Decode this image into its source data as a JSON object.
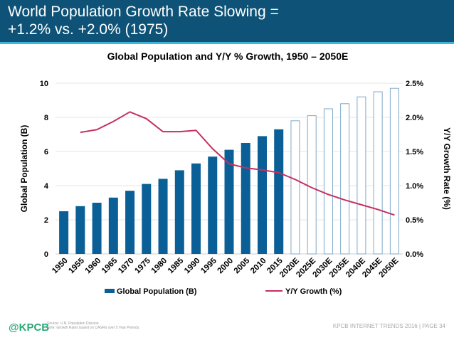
{
  "header": {
    "title": "World Population Growth Rate Slowing =\n+1.2% vs. +2.0% (1975)"
  },
  "chart_data": {
    "type": "bar+line",
    "title": "Global Population and Y/Y % Growth, 1950 – 2050E",
    "ylabel": "Global Population (B)",
    "y2label": "Y/Y Growth Rate (%)",
    "ylim": [
      0,
      10
    ],
    "y2lim": [
      0,
      2.5
    ],
    "yticks": [
      "0",
      "2",
      "4",
      "6",
      "8",
      "10"
    ],
    "y2ticks": [
      "0.0%",
      "0.5%",
      "1.0%",
      "1.5%",
      "2.0%",
      "2.5%"
    ],
    "categories": [
      "1950",
      "1955",
      "1960",
      "1965",
      "1970",
      "1975",
      "1980",
      "1985",
      "1990",
      "1995",
      "2000",
      "2005",
      "2010",
      "2015",
      "2020E",
      "2025E",
      "2030E",
      "2035E",
      "2040E",
      "2045E",
      "2050E"
    ],
    "series": [
      {
        "name": "Global Population (B)",
        "type": "bar",
        "axis": "left",
        "color": "#0a5f97",
        "values": [
          2.5,
          2.8,
          3.0,
          3.3,
          3.7,
          4.1,
          4.4,
          4.9,
          5.3,
          5.7,
          6.1,
          6.5,
          6.9,
          7.3,
          7.8,
          8.1,
          8.5,
          8.8,
          9.2,
          9.5,
          9.7
        ],
        "projected_from": "2020E"
      },
      {
        "name": "Y/Y Growth (%)",
        "type": "line",
        "axis": "right",
        "color": "#c5305f",
        "values": [
          null,
          1.78,
          1.82,
          1.94,
          2.08,
          1.98,
          1.79,
          1.79,
          1.81,
          1.54,
          1.32,
          1.26,
          1.23,
          1.19,
          1.09,
          0.97,
          0.87,
          0.79,
          0.72,
          0.65,
          0.57
        ]
      }
    ],
    "grid": true,
    "legend": "bottom"
  },
  "footer": {
    "logo": "@KPCB",
    "source": "Source: U.N. Population Division.",
    "note": "Note: Growth Rates based on CAGRs over 5 Year Periods.",
    "page": "KPCB INTERNET TRENDS 2016  |  PAGE 34"
  }
}
